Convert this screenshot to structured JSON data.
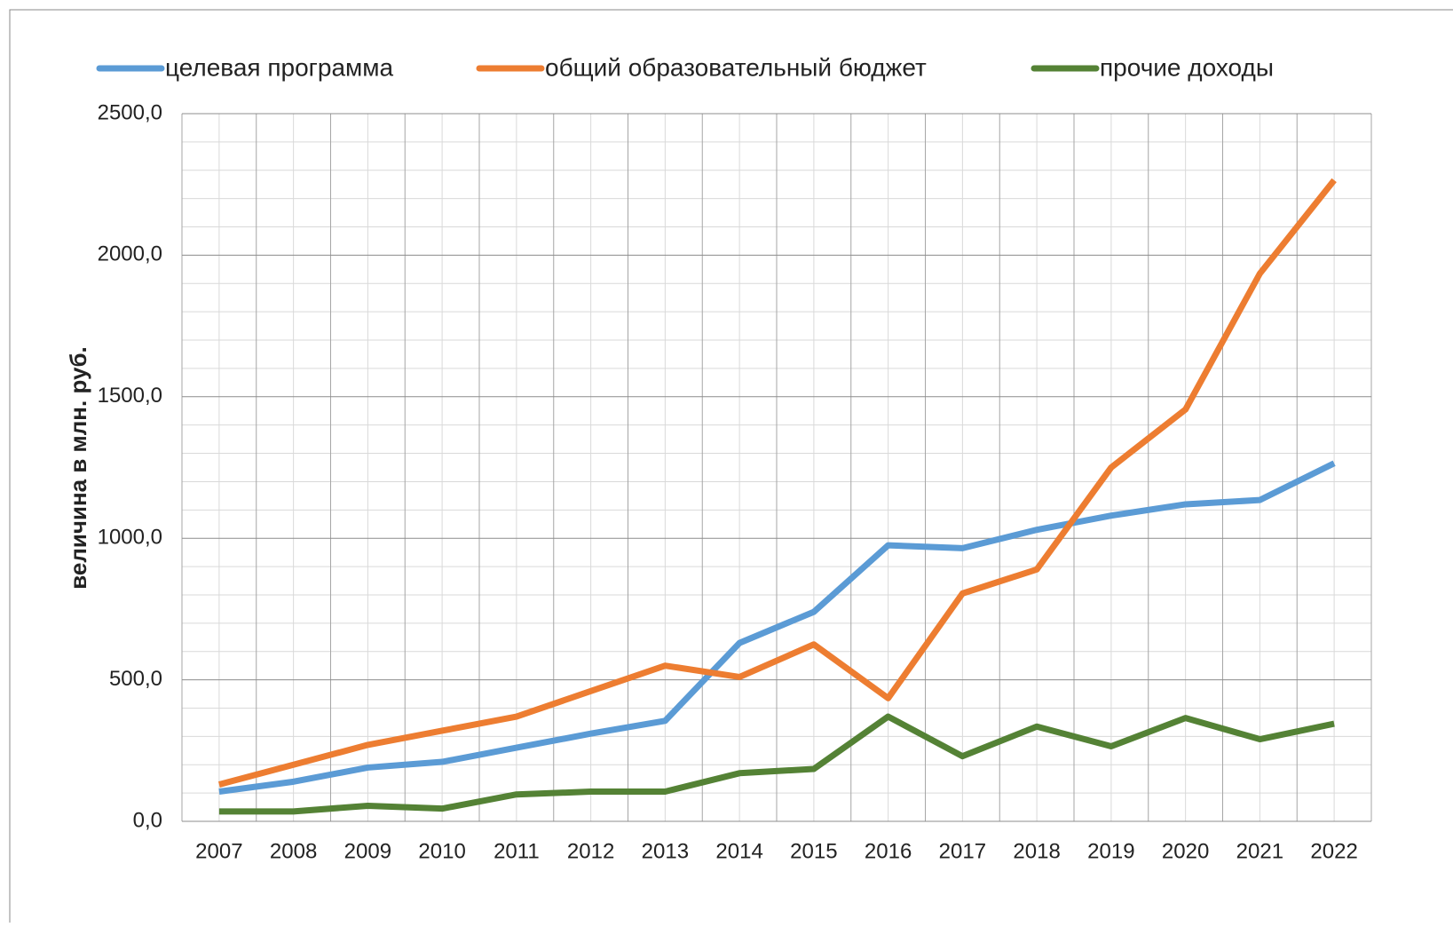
{
  "chart_data": {
    "type": "line",
    "categories": [
      "2007",
      "2008",
      "2009",
      "2010",
      "2011",
      "2012",
      "2013",
      "2014",
      "2015",
      "2016",
      "2017",
      "2018",
      "2019",
      "2020",
      "2021",
      "2022"
    ],
    "ylabel": "величина в млн. руб.",
    "series": [
      {
        "name": "целевая программа",
        "color": "#5b9bd5",
        "values": [
          105,
          140,
          190,
          210,
          260,
          310,
          355,
          630,
          740,
          975,
          965,
          1030,
          1080,
          1120,
          1135,
          1265
        ]
      },
      {
        "name": "общий образовательный бюджет",
        "color": "#ed7d31",
        "values": [
          130,
          200,
          270,
          320,
          370,
          460,
          550,
          510,
          625,
          435,
          805,
          890,
          1250,
          1455,
          1935,
          2265
        ]
      },
      {
        "name": "прочие доходы",
        "color": "#548235",
        "values": [
          35,
          35,
          55,
          45,
          95,
          105,
          105,
          170,
          185,
          370,
          230,
          335,
          265,
          365,
          290,
          345
        ]
      }
    ],
    "ylim": [
      0,
      2500
    ],
    "yticks": [
      {
        "value": 0,
        "label": "0,0"
      },
      {
        "value": 500,
        "label": "500,0"
      },
      {
        "value": 1000,
        "label": "1000,0"
      },
      {
        "value": 1500,
        "label": "1500,0"
      },
      {
        "value": 2000,
        "label": "2000,0"
      },
      {
        "value": 2500,
        "label": "2500,0"
      }
    ],
    "grid": true,
    "legend": "top"
  }
}
